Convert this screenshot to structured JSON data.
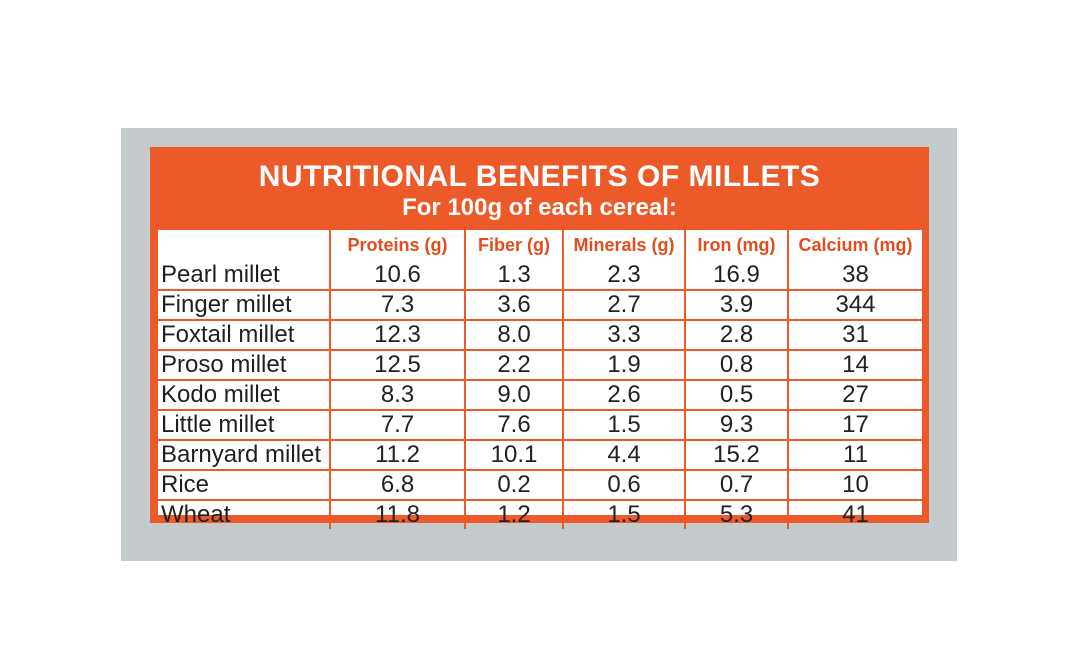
{
  "label": {
    "title": "NUTRITIONAL BENEFITS OF MILLETS",
    "subtitle": "For 100g of each cereal:"
  },
  "table": {
    "headers": [
      "",
      "Proteins (g)",
      "Fiber (g)",
      "Minerals (g)",
      "Iron (mg)",
      "Calcium (mg)"
    ],
    "rows": [
      {
        "name": "Pearl millet",
        "values": [
          "10.6",
          "1.3",
          "2.3",
          "16.9",
          "38"
        ]
      },
      {
        "name": "Finger millet",
        "values": [
          "7.3",
          "3.6",
          "2.7",
          "3.9",
          "344"
        ]
      },
      {
        "name": "Foxtail millet",
        "values": [
          "12.3",
          "8.0",
          "3.3",
          "2.8",
          "31"
        ]
      },
      {
        "name": "Proso millet",
        "values": [
          "12.5",
          "2.2",
          "1.9",
          "0.8",
          "14"
        ]
      },
      {
        "name": "Kodo millet",
        "values": [
          "8.3",
          "9.0",
          "2.6",
          "0.5",
          "27"
        ]
      },
      {
        "name": "Little millet",
        "values": [
          "7.7",
          "7.6",
          "1.5",
          "9.3",
          "17"
        ]
      },
      {
        "name": "Barnyard millet",
        "values": [
          "11.2",
          "10.1",
          "4.4",
          "15.2",
          "11"
        ]
      },
      {
        "name": "Rice",
        "values": [
          "6.8",
          "0.2",
          "0.6",
          "0.7",
          "10"
        ]
      },
      {
        "name": "Wheat",
        "values": [
          "11.8",
          "1.2",
          "1.5",
          "5.3",
          "41"
        ]
      }
    ]
  },
  "colors": {
    "accent": "#ec5a2a",
    "header_text": "#e24d1d",
    "panel": "#c5cacd"
  }
}
